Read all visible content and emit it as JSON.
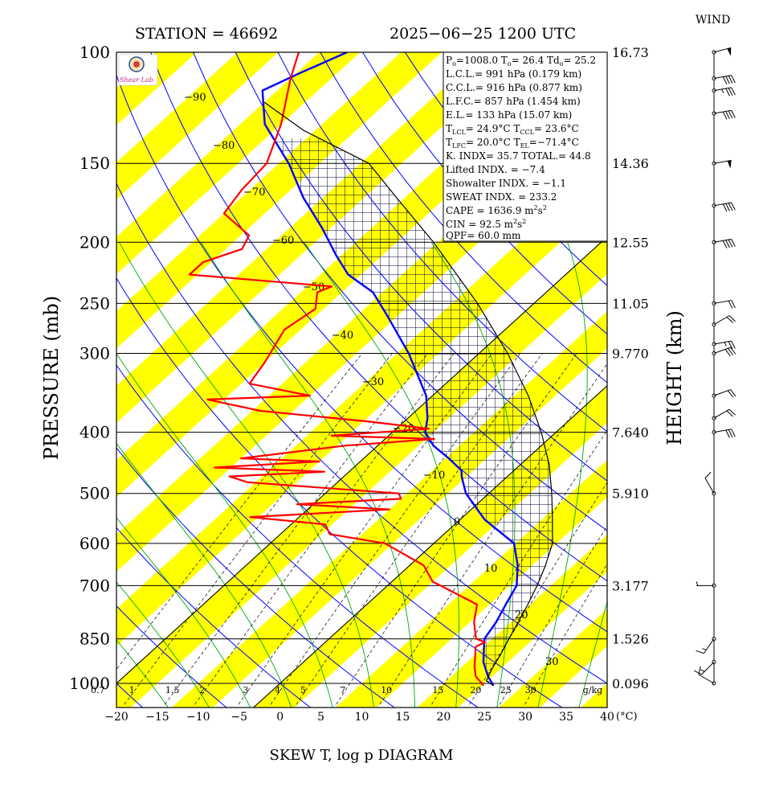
{
  "header": {
    "station": "STATION = 46692",
    "datetime": "2025−06−25 1200 UTC",
    "wind_title": "WIND",
    "footer": "SKEW T, log p DIAGRAM",
    "logo_text": "Shear Lab"
  },
  "indices": {
    "line1": [
      "P",
      "o",
      "=1008.0 T",
      "o",
      "= 26.4 Td",
      "o",
      "= 25.2"
    ],
    "lcl": "L.C.L.= 991 hPa (0.179 km)",
    "ccl": "C.C.L.= 916 hPa (0.877 km)",
    "lfc": "L.F.C.= 857 hPa (1.454 km)",
    "el": "E.L.= 133 hPa (15.07 km)",
    "line_tlcl": [
      "T",
      "LCL",
      "= 24.9°C T",
      "CCL",
      "= 23.6°C"
    ],
    "line_tlfc": [
      "T",
      "LFC",
      "= 20.0°C T",
      "EL",
      "=−71.4°C"
    ],
    "kindex": "K. INDX= 35.7 TOTAL.= 44.8",
    "lifted": "Lifted INDX. = −7.4",
    "showalter": "Showalter INDX. = −1.1",
    "sweat": "SWEAT INDX. = 233.2",
    "cape": [
      "CAPE = 1636.9 m",
      "2",
      "s",
      "2"
    ],
    "cin": [
      "CIN = 92.5 m",
      "2",
      "s",
      "2"
    ],
    "qpf": "QPF= 60.0 mm"
  },
  "chart_data": {
    "type": "line",
    "title": "SKEW T, log p DIAGRAM",
    "xlabel": "(°C)",
    "ylabel": "PRESSURE (mb)",
    "ylabel_right": "HEIGHT (km)",
    "xlim": [
      -20,
      40
    ],
    "ylim": [
      1000,
      100
    ],
    "y_scale": "log",
    "x_ticks": [
      "−20",
      "−15",
      "−10",
      "−5",
      "0",
      "5",
      "10",
      "15",
      "20",
      "25",
      "30",
      "35",
      "40"
    ],
    "pressure_levels": [
      {
        "p": 100,
        "label": "100",
        "height": "16.73"
      },
      {
        "p": 150,
        "label": "150",
        "height": "14.36"
      },
      {
        "p": 200,
        "label": "200",
        "height": "12.55"
      },
      {
        "p": 250,
        "label": "250",
        "height": "11.05"
      },
      {
        "p": 300,
        "label": "300",
        "height": "9.770"
      },
      {
        "p": 400,
        "label": "400",
        "height": "7.640"
      },
      {
        "p": 500,
        "label": "500",
        "height": "5.910"
      },
      {
        "p": 600,
        "label": "600",
        "height": ""
      },
      {
        "p": 700,
        "label": "700",
        "height": "3.177"
      },
      {
        "p": 850,
        "label": "850",
        "height": "1.526"
      },
      {
        "p": 1000,
        "label": "1000",
        "height": "0.096"
      }
    ],
    "mixing_ratio_labels": [
      "0.7",
      "1",
      "1.5",
      "2",
      "3",
      "4",
      "5",
      "7",
      "10",
      "15",
      "20",
      "25",
      "30",
      "g/kg"
    ],
    "isotherm_labels": [
      {
        "t": -90,
        "label": "−90"
      },
      {
        "t": -80,
        "label": "−80"
      },
      {
        "t": -70,
        "label": "−70"
      },
      {
        "t": -60,
        "label": "−60"
      },
      {
        "t": -50,
        "label": "−50"
      },
      {
        "t": -40,
        "label": "−40"
      },
      {
        "t": -30,
        "label": "−30"
      },
      {
        "t": -20,
        "label": "−20"
      },
      {
        "t": -10,
        "label": "−10"
      },
      {
        "t": 0,
        "label": "0"
      },
      {
        "t": 10,
        "label": "10"
      },
      {
        "t": 20,
        "label": "20"
      },
      {
        "t": 30,
        "label": "30"
      }
    ],
    "series": [
      {
        "color": "#0000ff",
        "points": [
          [
            1008,
            26.4
          ],
          [
            975,
            24.5
          ],
          [
            925,
            22.0
          ],
          [
            850,
            19.0
          ],
          [
            800,
            18.2
          ],
          [
            750,
            17.0
          ],
          [
            700,
            15.8
          ],
          [
            650,
            13.2
          ],
          [
            600,
            9.8
          ],
          [
            550,
            3.0
          ],
          [
            500,
            -2.8
          ],
          [
            470,
            -5.6
          ],
          [
            460,
            -6.4
          ],
          [
            440,
            -9.6
          ],
          [
            420,
            -13.2
          ],
          [
            400,
            -16.0
          ],
          [
            380,
            -17.6
          ],
          [
            350,
            -20.8
          ],
          [
            300,
            -28.6
          ],
          [
            260,
            -36.6
          ],
          [
            240,
            -41.2
          ],
          [
            225,
            -46.6
          ],
          [
            210,
            -50.6
          ],
          [
            190,
            -56.0
          ],
          [
            170,
            -62.4
          ],
          [
            150,
            -68.8
          ],
          [
            130,
            -77.0
          ],
          [
            115,
            -81.8
          ],
          [
            108,
            -79.6
          ],
          [
            100,
            -76.6
          ]
        ]
      },
      {
        "color": "#ff0000",
        "points": [
          [
            1008,
            25.2
          ],
          [
            975,
            23.0
          ],
          [
            940,
            21.5
          ],
          [
            900,
            20.0
          ],
          [
            875,
            19.0
          ],
          [
            860,
            19.5
          ],
          [
            850,
            18.0
          ],
          [
            830,
            17.0
          ],
          [
            800,
            15.5
          ],
          [
            750,
            13.5
          ],
          [
            700,
            6.5
          ],
          [
            690,
            5.0
          ],
          [
            650,
            1.7
          ],
          [
            600,
            -6.0
          ],
          [
            580,
            -14.0
          ],
          [
            560,
            -15.8
          ],
          [
            545,
            -26.0
          ],
          [
            530,
            -10.0
          ],
          [
            520,
            -22.0
          ],
          [
            510,
            -10.0
          ],
          [
            500,
            -11.0
          ],
          [
            480,
            -31.0
          ],
          [
            470,
            -34.0
          ],
          [
            462,
            -23.0
          ],
          [
            455,
            -37.0
          ],
          [
            445,
            -25.0
          ],
          [
            440,
            -35.0
          ],
          [
            420,
            -24.0
          ],
          [
            410,
            -14.0
          ],
          [
            405,
            -27.0
          ],
          [
            395,
            -16.0
          ],
          [
            385,
            -24.0
          ],
          [
            370,
            -39.0
          ],
          [
            355,
            -47.0
          ],
          [
            350,
            -35.0
          ],
          [
            335,
            -44.0
          ],
          [
            310,
            -45.0
          ],
          [
            275,
            -47.0
          ],
          [
            255,
            -46.0
          ],
          [
            240,
            -48.0
          ],
          [
            235,
            -47.0
          ],
          [
            225,
            -66.0
          ],
          [
            215,
            -66.0
          ],
          [
            205,
            -63.0
          ],
          [
            195,
            -64.0
          ],
          [
            180,
            -70.0
          ],
          [
            165,
            -71.0
          ],
          [
            150,
            -71.5
          ],
          [
            130,
            -75.0
          ],
          [
            110,
            -80.0
          ],
          [
            100,
            -82.5
          ]
        ]
      },
      {
        "color": "#000000",
        "points": [
          [
            1008,
            26.4
          ],
          [
            991,
            24.9
          ],
          [
            950,
            24.0
          ],
          [
            900,
            23.1
          ],
          [
            850,
            22.0
          ],
          [
            800,
            20.9
          ],
          [
            750,
            19.7
          ],
          [
            700,
            18.3
          ],
          [
            650,
            16.6
          ],
          [
            600,
            14.5
          ],
          [
            550,
            11.3
          ],
          [
            500,
            7.7
          ],
          [
            450,
            3.5
          ],
          [
            400,
            -1.8
          ],
          [
            350,
            -8.3
          ],
          [
            300,
            -16.5
          ],
          [
            250,
            -26.9
          ],
          [
            200,
            -40.5
          ],
          [
            170,
            -51.0
          ],
          [
            150,
            -59.0
          ],
          [
            133,
            -71.4
          ],
          [
            120,
            -80.0
          ]
        ]
      }
    ],
    "wind_barbs": [
      {
        "p": 1000,
        "dir": 300,
        "spd": 10
      },
      {
        "p": 925,
        "dir": 225,
        "spd": 15
      },
      {
        "p": 850,
        "dir": 215,
        "spd": 15
      },
      {
        "p": 700,
        "dir": 270,
        "spd": 5
      },
      {
        "p": 500,
        "dir": 330,
        "spd": 10
      },
      {
        "p": 400,
        "dir": 80,
        "spd": 30
      },
      {
        "p": 380,
        "dir": 60,
        "spd": 20
      },
      {
        "p": 350,
        "dir": 70,
        "spd": 20
      },
      {
        "p": 300,
        "dir": 70,
        "spd": 30
      },
      {
        "p": 290,
        "dir": 80,
        "spd": 25
      },
      {
        "p": 270,
        "dir": 60,
        "spd": 20
      },
      {
        "p": 250,
        "dir": 80,
        "spd": 20
      },
      {
        "p": 200,
        "dir": 80,
        "spd": 40
      },
      {
        "p": 175,
        "dir": 80,
        "spd": 40
      },
      {
        "p": 150,
        "dir": 80,
        "spd": 50
      },
      {
        "p": 125,
        "dir": 80,
        "spd": 40
      },
      {
        "p": 115,
        "dir": 80,
        "spd": 35
      },
      {
        "p": 110,
        "dir": 80,
        "spd": 40
      },
      {
        "p": 100,
        "dir": 75,
        "spd": 50
      }
    ]
  }
}
